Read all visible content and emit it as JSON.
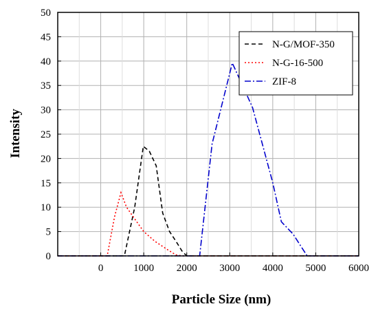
{
  "chart_data": {
    "type": "line",
    "xlabel": "Particle Size (nm)",
    "ylabel": "Intensity",
    "xlim": [
      -1000,
      6000
    ],
    "ylim": [
      0,
      50
    ],
    "xticks": [
      0,
      1000,
      2000,
      3000,
      4000,
      5000,
      6000
    ],
    "yticks": [
      0,
      5,
      10,
      15,
      20,
      25,
      30,
      35,
      40,
      45,
      50
    ],
    "grid": true,
    "legend_position": "top-right",
    "series": [
      {
        "name": "N-G/MOF-350",
        "color": "#000000",
        "dash": "dashed",
        "points": [
          [
            -1000,
            0
          ],
          [
            550,
            0
          ],
          [
            790,
            10
          ],
          [
            990,
            22.5
          ],
          [
            1130,
            21.5
          ],
          [
            1290,
            18.5
          ],
          [
            1440,
            8.8
          ],
          [
            1600,
            5
          ],
          [
            1750,
            3
          ],
          [
            1890,
            1
          ],
          [
            2000,
            0
          ],
          [
            6000,
            0
          ]
        ]
      },
      {
        "name": "N-G-16-500",
        "color": "#ff0000",
        "dash": "dotted",
        "points": [
          [
            -1000,
            0
          ],
          [
            150,
            0
          ],
          [
            320,
            8
          ],
          [
            470,
            13
          ],
          [
            600,
            10
          ],
          [
            790,
            7.6
          ],
          [
            1000,
            5
          ],
          [
            1260,
            3
          ],
          [
            1550,
            1.3
          ],
          [
            1750,
            0.2
          ],
          [
            1900,
            0
          ],
          [
            6000,
            0
          ]
        ]
      },
      {
        "name": "ZIF-8",
        "color": "#0000cc",
        "dash": "dashdot",
        "points": [
          [
            -1000,
            0
          ],
          [
            2300,
            0
          ],
          [
            2590,
            23
          ],
          [
            3060,
            39.6
          ],
          [
            3530,
            30.5
          ],
          [
            4000,
            15
          ],
          [
            4200,
            7
          ],
          [
            4470,
            4.5
          ],
          [
            4800,
            0
          ],
          [
            6000,
            0
          ]
        ]
      }
    ]
  }
}
